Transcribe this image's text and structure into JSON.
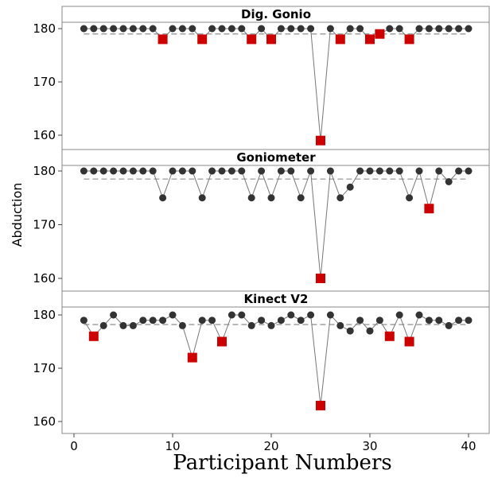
{
  "chart_data": {
    "type": "scatter",
    "xlabel": "Participant Numbers",
    "ylabel": "Abduction",
    "xlim": [
      -1,
      42
    ],
    "xticks": [
      0,
      10,
      20,
      30,
      40
    ],
    "ylim": [
      157,
      181.5
    ],
    "yticks": [
      160,
      170,
      180
    ],
    "colors": {
      "normal": "#333333",
      "highlight": "#cc0000",
      "line": "#777777",
      "reference": "#999999"
    },
    "panels": [
      {
        "title": "Dig. Gonio",
        "reference": 179,
        "y": [
          180,
          180,
          180,
          180,
          180,
          180,
          180,
          180,
          178,
          180,
          180,
          180,
          178,
          180,
          180,
          180,
          180,
          178,
          180,
          178,
          180,
          180,
          180,
          180,
          159,
          180,
          178,
          180,
          180,
          178,
          179,
          180,
          180,
          178,
          180,
          180,
          180,
          180,
          180,
          180
        ],
        "highlight": [
          9,
          13,
          18,
          20,
          25,
          27,
          30,
          31,
          34
        ]
      },
      {
        "title": "Goniometer",
        "reference": 178.5,
        "y": [
          180,
          180,
          180,
          180,
          180,
          180,
          180,
          180,
          175,
          180,
          180,
          180,
          175,
          180,
          180,
          180,
          180,
          175,
          180,
          175,
          180,
          180,
          175,
          180,
          160,
          180,
          175,
          177,
          180,
          180,
          180,
          180,
          180,
          175,
          180,
          173,
          180,
          178,
          180,
          180
        ],
        "highlight": [
          25,
          36
        ]
      },
      {
        "title": "Kinect V2",
        "reference": 178.2,
        "y": [
          179,
          176,
          178,
          180,
          178,
          178,
          179,
          179,
          179,
          180,
          178,
          172,
          179,
          179,
          175,
          180,
          180,
          178,
          179,
          178,
          179,
          180,
          179,
          180,
          163,
          180,
          178,
          177,
          179,
          177,
          179,
          176,
          180,
          175,
          180,
          179,
          179,
          178,
          179,
          179
        ],
        "highlight": [
          2,
          12,
          15,
          25,
          32,
          34
        ]
      }
    ]
  }
}
